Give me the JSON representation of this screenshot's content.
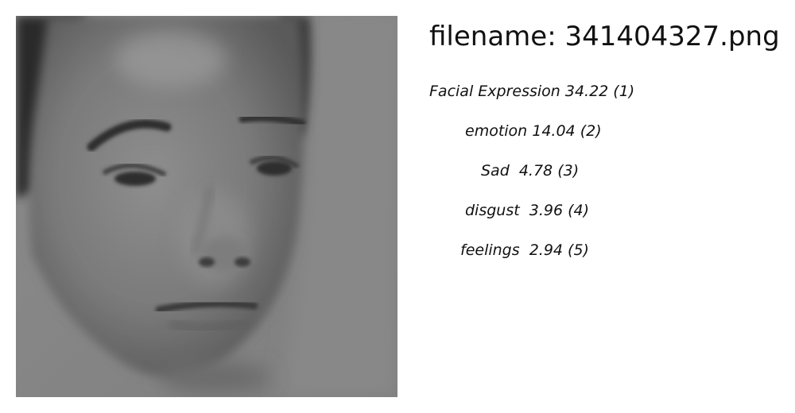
{
  "header": {
    "filename_label": "filename: 341404327.png"
  },
  "image": {
    "icon": "grayscale-face-photo"
  },
  "labels": [
    {
      "text": "Facial Expression 34.22 (1)"
    },
    {
      "text": "emotion 14.04 (2)"
    },
    {
      "text": "Sad  4.78 (3)"
    },
    {
      "text": "disgust  3.96 (4)"
    },
    {
      "text": "feelings  2.94 (5)"
    }
  ]
}
